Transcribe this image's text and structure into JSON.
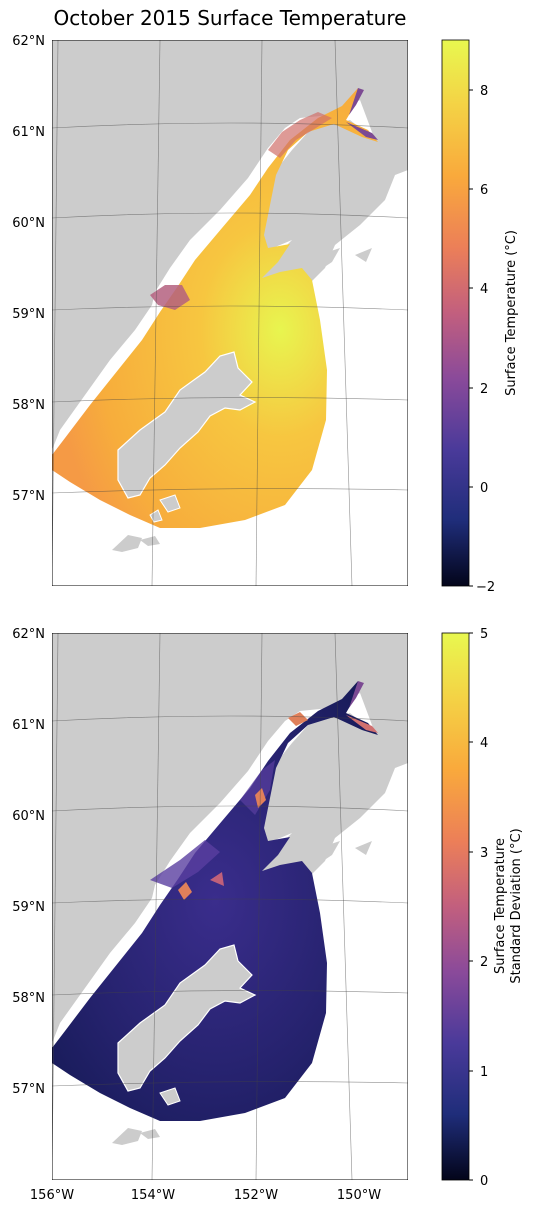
{
  "chart_data": [
    {
      "type": "heatmap",
      "title": "October 2015 Surface Temperature",
      "latitude_ticks": [
        "62°N",
        "61°N",
        "60°N",
        "59°N",
        "58°N",
        "57°N"
      ],
      "longitude_ticks": [],
      "colorbar": {
        "label": "Surface Temperature (°C)",
        "range": [
          -2,
          9
        ],
        "ticks": [
          "8",
          "6",
          "4",
          "2",
          "0",
          "−2"
        ],
        "colormap": [
          "#03051a",
          "#1f2d7a",
          "#4a3a9a",
          "#8a4a9a",
          "#c25f7e",
          "#ec7f58",
          "#f9a93c",
          "#f4d245",
          "#e8f84f"
        ]
      },
      "land_color": "#cccccc"
    },
    {
      "type": "heatmap",
      "title": "",
      "latitude_ticks": [
        "62°N",
        "61°N",
        "60°N",
        "59°N",
        "58°N",
        "57°N"
      ],
      "longitude_ticks": [
        "156°W",
        "154°W",
        "152°W",
        "150°W"
      ],
      "colorbar": {
        "label_line1": "Surface Temperature",
        "label_line2": "Standard Deviation (°C)",
        "range": [
          0,
          5
        ],
        "ticks": [
          "5",
          "4",
          "3",
          "2",
          "1",
          "0"
        ],
        "colormap": [
          "#03051a",
          "#1f2d7a",
          "#4a3a9a",
          "#8a4a9a",
          "#c25f7e",
          "#ec7f58",
          "#f9a93c",
          "#f4d245",
          "#e8f84f"
        ]
      },
      "land_color": "#cccccc"
    }
  ]
}
